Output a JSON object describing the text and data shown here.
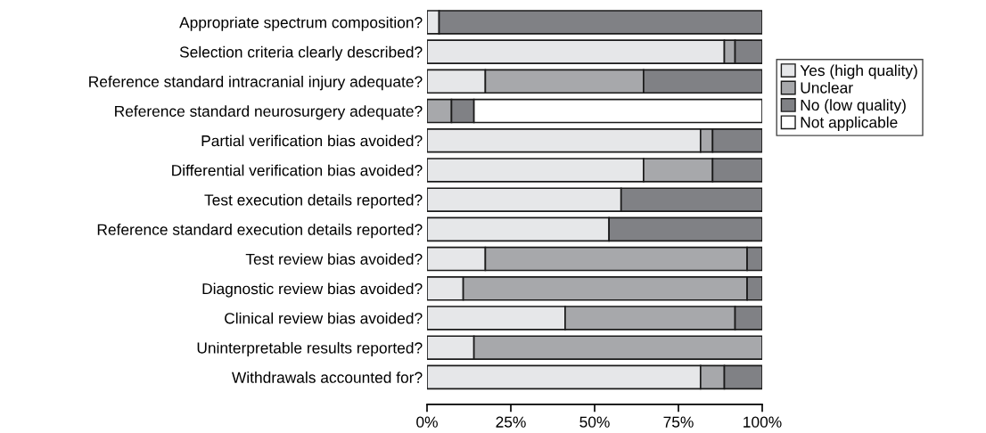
{
  "chart_data": {
    "type": "bar",
    "orientation": "horizontal",
    "stacked": true,
    "categories": [
      "Appropriate spectrum composition?",
      "Selection criteria clearly described?",
      "Reference standard intracranial injury adequate?",
      "Reference standard neurosurgery adequate?",
      "Partial verification bias avoided?",
      "Differential verification bias avoided?",
      "Test execution details reported?",
      "Reference standard execution details reported?",
      "Test review bias avoided?",
      "Diagnostic review bias avoided?",
      "Clinical review bias avoided?",
      "Uninterpretable results reported?",
      "Withdrawals accounted for?"
    ],
    "series": [
      {
        "name": "Yes (high quality)",
        "color": "#e6e7e9",
        "values": [
          3.6,
          88.7,
          17.4,
          0,
          81.6,
          64.6,
          57.9,
          54.3,
          17.4,
          10.8,
          41.2,
          14.0,
          81.6
        ]
      },
      {
        "name": "Unclear",
        "color": "#a7a8ab",
        "values": [
          0,
          3.2,
          47.2,
          7.3,
          3.6,
          20.6,
          0,
          0,
          78.1,
          84.7,
          50.7,
          86.0,
          7.1
        ]
      },
      {
        "name": "No (low quality)",
        "color": "#808185",
        "values": [
          96.4,
          8.1,
          35.4,
          6.7,
          14.8,
          14.8,
          42.1,
          45.7,
          4.5,
          4.5,
          8.1,
          0,
          11.3
        ]
      },
      {
        "name": "Not applicable",
        "color": "#ffffff",
        "values": [
          0,
          0,
          0,
          86.0,
          0,
          0,
          0,
          0,
          0,
          0,
          0,
          0,
          0
        ]
      }
    ],
    "xlim": [
      0,
      100
    ],
    "xticks": [
      {
        "value": 0,
        "label": "0%"
      },
      {
        "value": 25,
        "label": "25%"
      },
      {
        "value": 50,
        "label": "50%"
      },
      {
        "value": 75,
        "label": "75%"
      },
      {
        "value": 100,
        "label": "100%"
      }
    ],
    "legend": "right",
    "grid": false
  }
}
